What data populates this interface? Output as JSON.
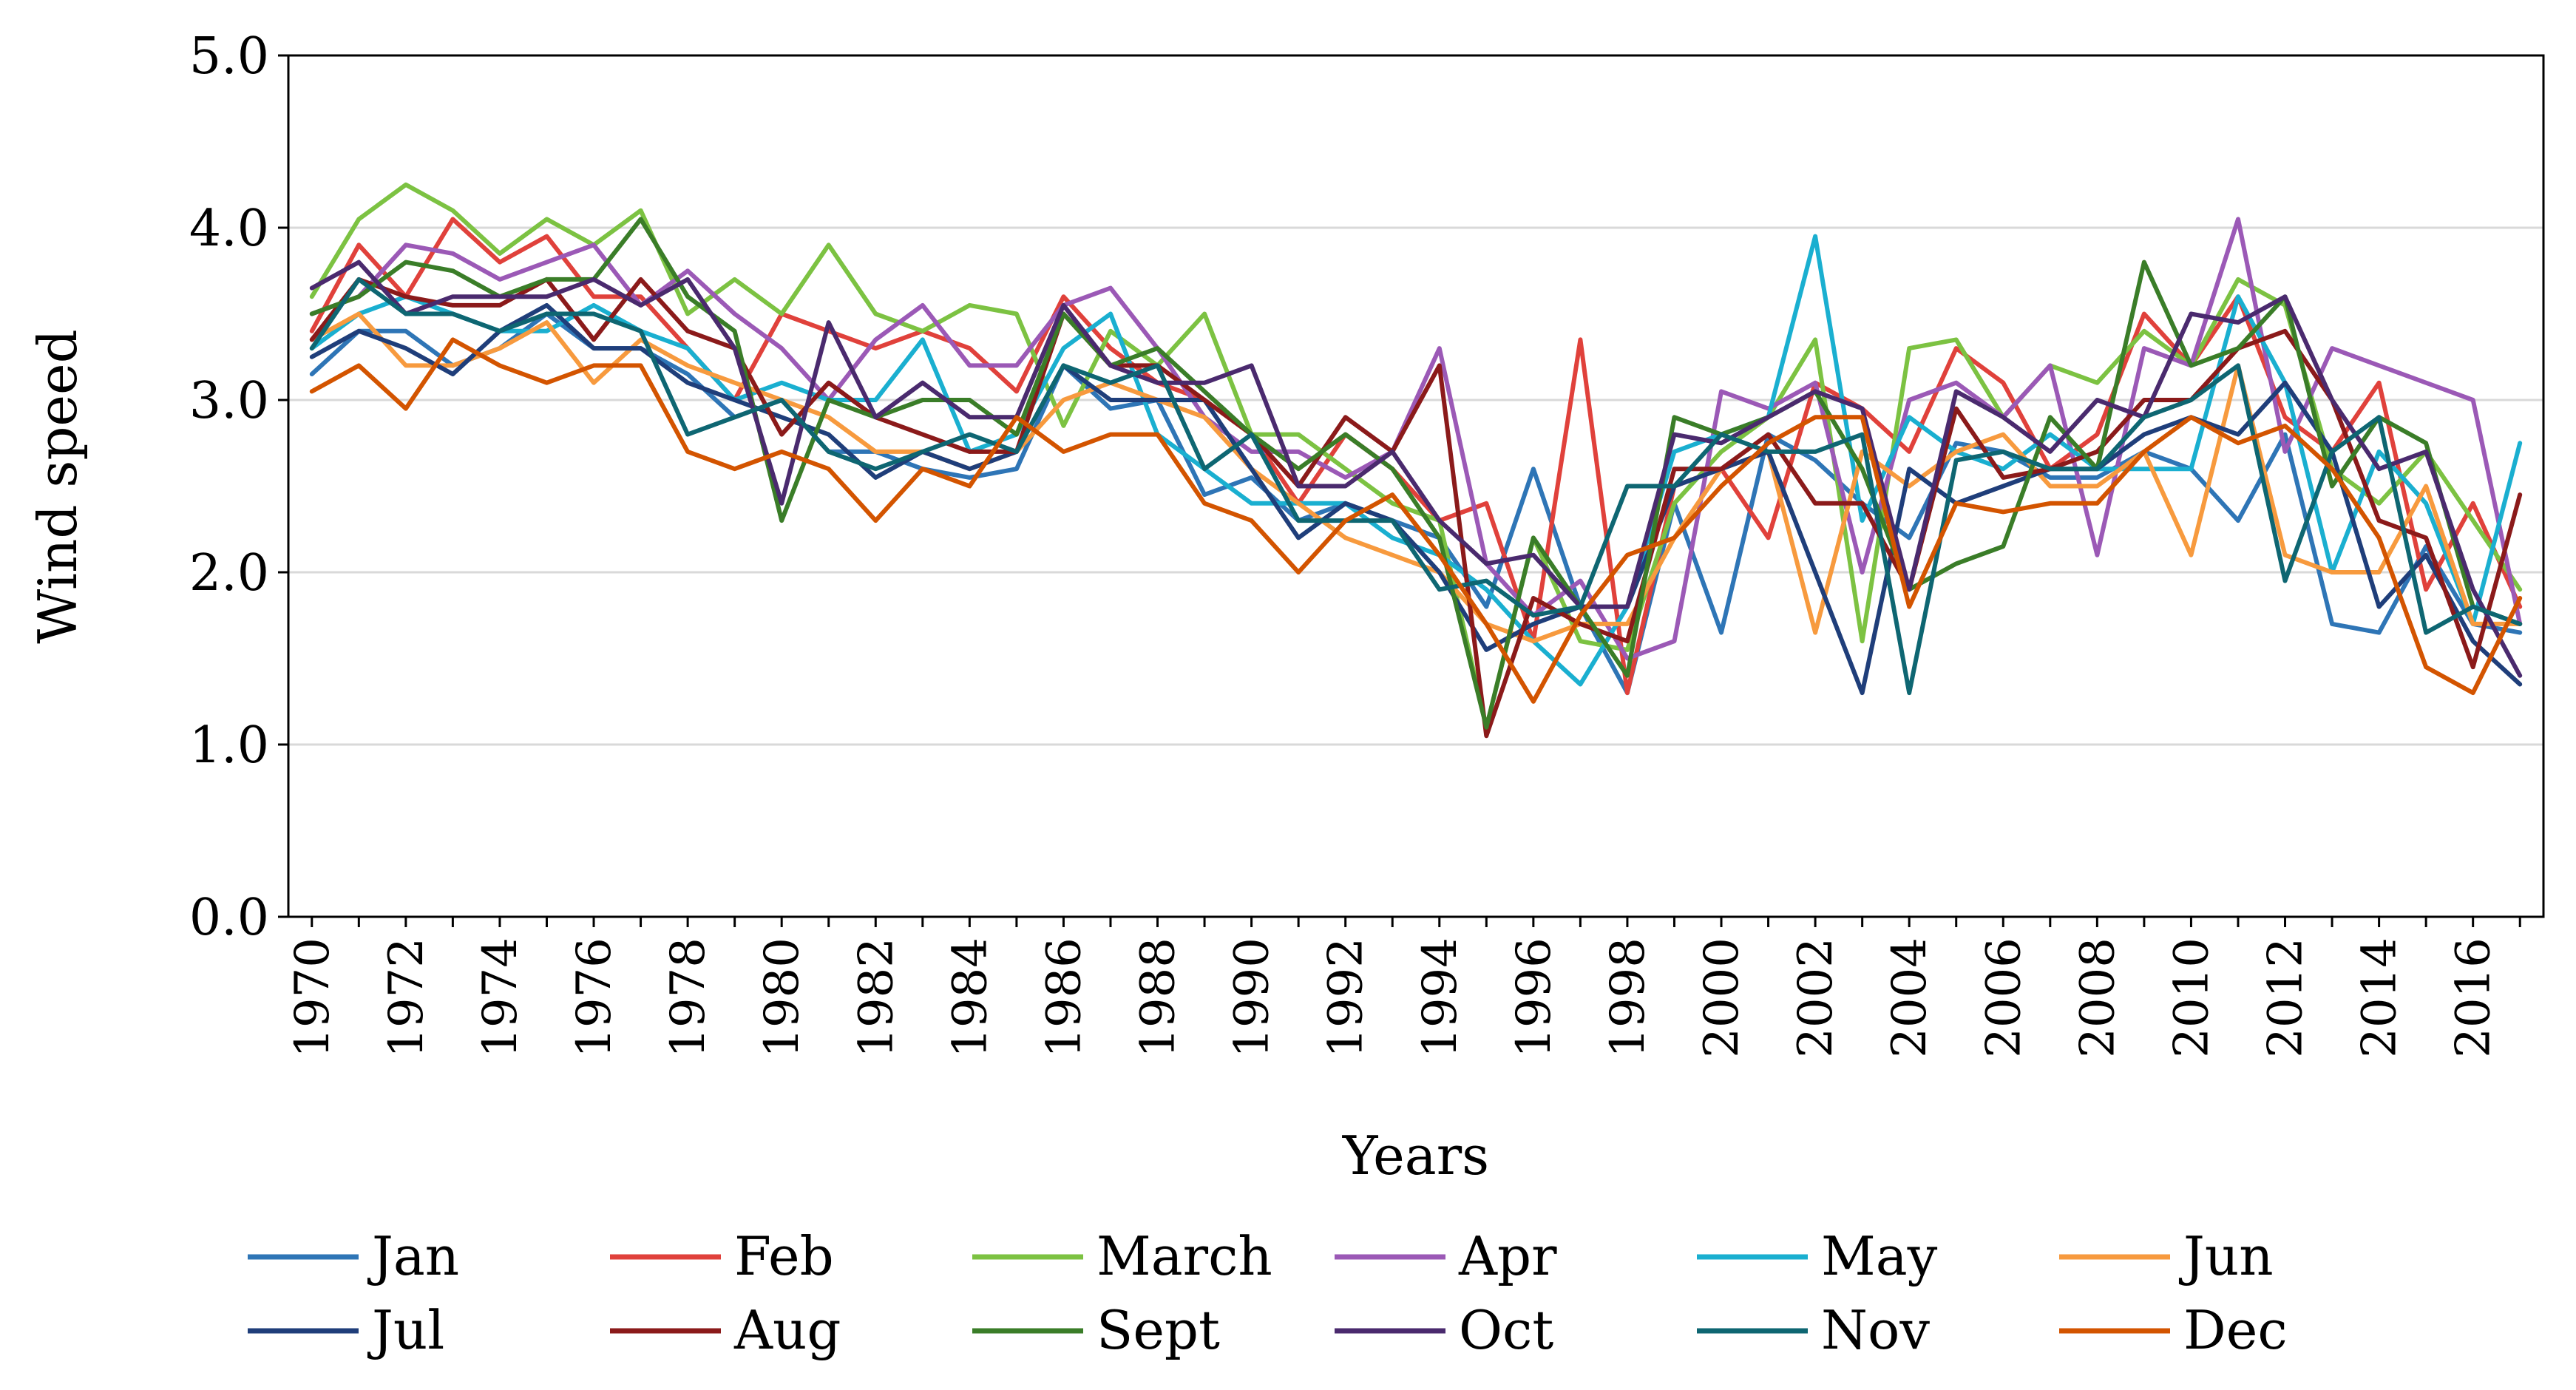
{
  "chart_data": {
    "type": "line",
    "title": "",
    "xlabel": "Years",
    "ylabel": "Wind speed",
    "ylim": [
      0,
      5
    ],
    "xlim": [
      1969.5,
      2017.5
    ],
    "y_ticks": [
      "0.0",
      "1.0",
      "2.0",
      "3.0",
      "4.0",
      "5.0"
    ],
    "x_ticks": [
      "1970",
      "1972",
      "1974",
      "1976",
      "1978",
      "1980",
      "1982",
      "1984",
      "1986",
      "1988",
      "1990",
      "1992",
      "1994",
      "1996",
      "1998",
      "2000",
      "2002",
      "2004",
      "2006",
      "2008",
      "2010",
      "2012",
      "2014",
      "2016"
    ],
    "grid": true,
    "legend_position": "bottom",
    "x": [
      1970,
      1971,
      1972,
      1973,
      1974,
      1975,
      1976,
      1977,
      1978,
      1979,
      1980,
      1981,
      1982,
      1983,
      1984,
      1985,
      1986,
      1987,
      1988,
      1989,
      1990,
      1991,
      1992,
      1993,
      1994,
      1995,
      1996,
      1997,
      1998,
      1999,
      2000,
      2001,
      2002,
      2003,
      2004,
      2005,
      2006,
      2007,
      2008,
      2009,
      2010,
      2011,
      2012,
      2013,
      2014,
      2015,
      2016,
      2017
    ],
    "series": [
      {
        "name": "Jan",
        "color": "#2E75B6",
        "values": [
          3.15,
          3.4,
          3.4,
          3.2,
          3.3,
          3.5,
          3.3,
          3.3,
          3.15,
          2.9,
          3.0,
          2.7,
          2.7,
          2.6,
          2.55,
          2.6,
          3.2,
          2.95,
          3.0,
          2.45,
          2.55,
          2.3,
          2.4,
          2.3,
          2.2,
          1.8,
          2.6,
          1.8,
          1.3,
          2.4,
          1.65,
          2.8,
          2.65,
          2.4,
          2.2,
          2.75,
          2.7,
          2.55,
          2.55,
          2.7,
          2.6,
          2.3,
          2.8,
          1.7,
          1.65,
          2.15,
          1.7,
          1.65
        ]
      },
      {
        "name": "Feb",
        "color": "#E0413B",
        "values": [
          3.4,
          3.9,
          3.6,
          4.05,
          3.8,
          3.95,
          3.6,
          3.6,
          3.3,
          3.0,
          3.5,
          3.4,
          3.3,
          3.4,
          3.3,
          3.05,
          3.6,
          3.3,
          3.1,
          3.0,
          2.8,
          2.4,
          2.8,
          2.6,
          2.3,
          2.4,
          1.6,
          3.35,
          1.3,
          2.5,
          2.6,
          2.2,
          3.1,
          2.95,
          2.7,
          3.3,
          3.1,
          2.6,
          2.8,
          3.5,
          3.2,
          3.6,
          2.9,
          2.7,
          3.1,
          1.9,
          2.4,
          1.8
        ]
      },
      {
        "name": "March",
        "color": "#7CC242",
        "values": [
          3.6,
          4.05,
          4.25,
          4.1,
          3.85,
          4.05,
          3.9,
          4.1,
          3.5,
          3.7,
          3.5,
          3.9,
          3.5,
          3.4,
          3.55,
          3.5,
          2.85,
          3.4,
          3.2,
          3.5,
          2.8,
          2.8,
          2.6,
          2.4,
          2.3,
          1.1,
          2.2,
          1.6,
          1.55,
          2.4,
          2.7,
          2.9,
          3.35,
          1.6,
          3.3,
          3.35,
          2.9,
          3.2,
          3.1,
          3.4,
          3.2,
          3.7,
          3.55,
          2.6,
          2.4,
          2.7,
          2.3,
          1.9
        ]
      },
      {
        "name": "Apr",
        "color": "#9B59B6",
        "values": [
          3.5,
          3.6,
          3.9,
          3.85,
          3.7,
          3.8,
          3.9,
          3.55,
          3.75,
          3.5,
          3.3,
          3.0,
          3.35,
          3.55,
          3.2,
          3.2,
          3.55,
          3.65,
          3.3,
          2.9,
          2.7,
          2.7,
          2.55,
          2.7,
          3.3,
          2.05,
          1.75,
          1.95,
          1.5,
          1.6,
          3.05,
          2.95,
          3.1,
          2.0,
          3.0,
          3.1,
          2.9,
          3.2,
          2.1,
          3.3,
          3.2,
          4.05,
          2.7,
          3.3,
          3.2,
          3.1,
          3.0,
          1.7
        ]
      },
      {
        "name": "May",
        "color": "#1AAFD0",
        "values": [
          3.3,
          3.5,
          3.6,
          3.5,
          3.4,
          3.4,
          3.55,
          3.4,
          3.3,
          3.0,
          3.1,
          3.0,
          3.0,
          3.35,
          2.7,
          2.8,
          3.3,
          3.5,
          2.8,
          2.6,
          2.4,
          2.4,
          2.4,
          2.2,
          2.1,
          1.9,
          1.6,
          1.35,
          1.8,
          2.7,
          2.8,
          2.9,
          3.95,
          2.3,
          2.9,
          2.7,
          2.6,
          2.8,
          2.6,
          2.6,
          2.6,
          3.6,
          3.1,
          2.0,
          2.7,
          2.4,
          1.7,
          2.75
        ]
      },
      {
        "name": "Jun",
        "color": "#F79A3E",
        "values": [
          3.35,
          3.5,
          3.2,
          3.2,
          3.3,
          3.45,
          3.1,
          3.35,
          3.2,
          3.1,
          3.0,
          2.9,
          2.7,
          2.7,
          2.6,
          2.7,
          3.0,
          3.1,
          3.0,
          2.9,
          2.6,
          2.4,
          2.2,
          2.1,
          2.0,
          1.7,
          1.6,
          1.7,
          1.7,
          2.2,
          2.6,
          2.7,
          1.65,
          2.7,
          2.5,
          2.7,
          2.8,
          2.5,
          2.5,
          2.7,
          2.1,
          3.2,
          2.1,
          2.0,
          2.0,
          2.5,
          1.7,
          1.7
        ]
      },
      {
        "name": "Jul",
        "color": "#1F3E7A",
        "values": [
          3.25,
          3.4,
          3.3,
          3.15,
          3.4,
          3.55,
          3.3,
          3.3,
          3.1,
          3.0,
          2.9,
          2.8,
          2.55,
          2.7,
          2.6,
          2.7,
          3.2,
          3.0,
          3.0,
          3.0,
          2.6,
          2.2,
          2.4,
          2.3,
          2.0,
          1.55,
          1.7,
          1.8,
          1.8,
          2.5,
          2.6,
          2.7,
          2.0,
          1.3,
          2.6,
          2.4,
          2.5,
          2.6,
          2.6,
          2.8,
          2.9,
          2.8,
          3.1,
          2.7,
          1.8,
          2.1,
          1.6,
          1.35
        ]
      },
      {
        "name": "Aug",
        "color": "#8B1A1A",
        "values": [
          3.35,
          3.7,
          3.6,
          3.55,
          3.55,
          3.7,
          3.35,
          3.7,
          3.4,
          3.3,
          2.8,
          3.1,
          2.9,
          2.8,
          2.7,
          2.7,
          3.5,
          3.2,
          3.2,
          3.0,
          2.8,
          2.5,
          2.9,
          2.7,
          3.2,
          1.05,
          1.85,
          1.7,
          1.6,
          2.6,
          2.6,
          2.8,
          2.4,
          2.4,
          1.9,
          2.95,
          2.55,
          2.6,
          2.7,
          3.0,
          3.0,
          3.3,
          3.4,
          3.0,
          2.3,
          2.2,
          1.45,
          2.45
        ]
      },
      {
        "name": "Sept",
        "color": "#3A7D28",
        "values": [
          3.5,
          3.6,
          3.8,
          3.75,
          3.6,
          3.7,
          3.7,
          4.05,
          3.6,
          3.4,
          2.3,
          3.0,
          2.9,
          3.0,
          3.0,
          2.8,
          3.5,
          3.2,
          3.3,
          3.05,
          2.8,
          2.6,
          2.8,
          2.6,
          2.2,
          1.1,
          2.2,
          1.8,
          1.4,
          2.9,
          2.8,
          2.9,
          3.05,
          2.6,
          1.9,
          2.05,
          2.15,
          2.9,
          2.6,
          3.8,
          3.2,
          3.3,
          3.6,
          2.5,
          2.9,
          2.75,
          1.8,
          1.7
        ]
      },
      {
        "name": "Oct",
        "color": "#4A2A6E",
        "values": [
          3.65,
          3.8,
          3.5,
          3.6,
          3.6,
          3.6,
          3.7,
          3.55,
          3.7,
          3.3,
          2.4,
          3.45,
          2.9,
          3.1,
          2.9,
          2.9,
          3.55,
          3.2,
          3.1,
          3.1,
          3.2,
          2.5,
          2.5,
          2.7,
          2.3,
          2.05,
          2.1,
          1.8,
          1.8,
          2.8,
          2.75,
          2.9,
          3.05,
          2.95,
          1.9,
          3.05,
          2.9,
          2.7,
          3.0,
          2.9,
          3.5,
          3.45,
          3.6,
          3.0,
          2.6,
          2.7,
          1.9,
          1.4
        ]
      },
      {
        "name": "Nov",
        "color": "#0E6672",
        "values": [
          3.3,
          3.7,
          3.5,
          3.5,
          3.4,
          3.5,
          3.5,
          3.4,
          2.8,
          2.9,
          3.0,
          2.7,
          2.6,
          2.7,
          2.8,
          2.7,
          3.2,
          3.1,
          3.2,
          2.6,
          2.8,
          2.3,
          2.3,
          2.3,
          1.9,
          1.95,
          1.75,
          1.8,
          2.5,
          2.5,
          2.8,
          2.7,
          2.7,
          2.8,
          1.3,
          2.65,
          2.7,
          2.6,
          2.6,
          2.9,
          3.0,
          3.2,
          1.95,
          2.7,
          2.9,
          1.65,
          1.8,
          1.7
        ]
      },
      {
        "name": "Dec",
        "color": "#D35400",
        "values": [
          3.05,
          3.2,
          2.95,
          3.35,
          3.2,
          3.1,
          3.2,
          3.2,
          2.7,
          2.6,
          2.7,
          2.6,
          2.3,
          2.6,
          2.5,
          2.9,
          2.7,
          2.8,
          2.8,
          2.4,
          2.3,
          2.0,
          2.3,
          2.45,
          2.1,
          1.7,
          1.25,
          1.75,
          2.1,
          2.2,
          2.5,
          2.75,
          2.9,
          2.9,
          1.8,
          2.4,
          2.35,
          2.4,
          2.4,
          2.7,
          2.9,
          2.75,
          2.85,
          2.6,
          2.2,
          1.45,
          1.3,
          1.85
        ]
      }
    ]
  }
}
